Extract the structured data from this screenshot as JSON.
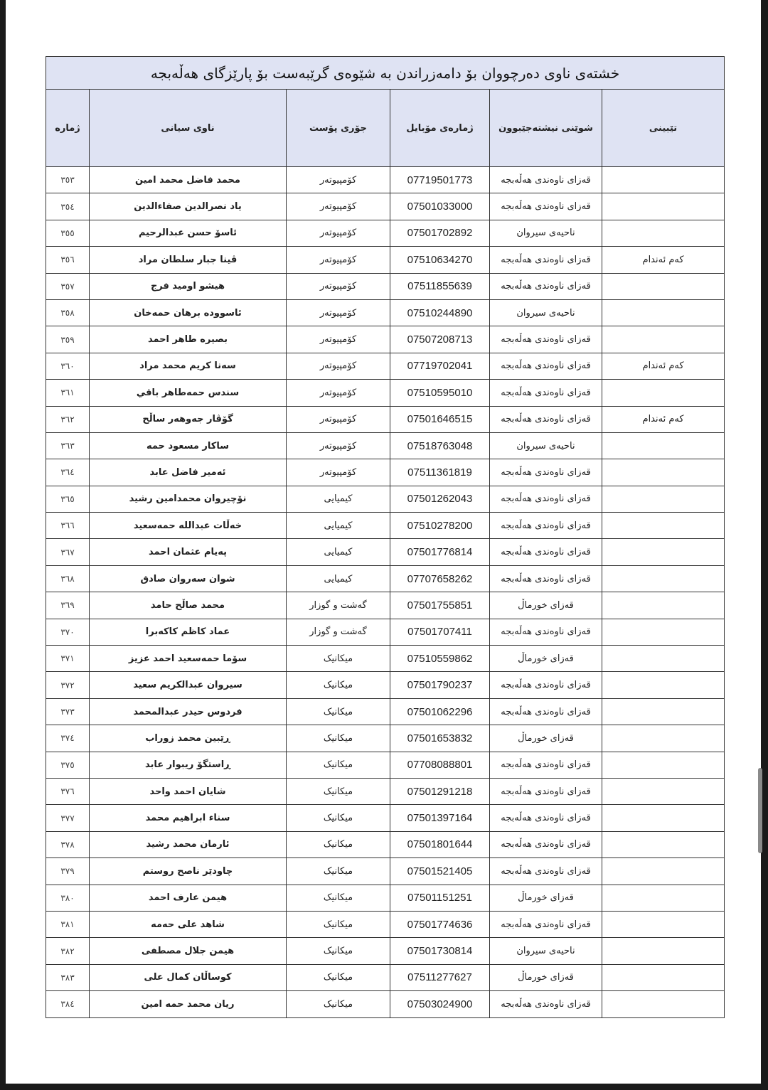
{
  "title": "خشتەی ناوی دەرچووان بۆ دامەزراندن بە شێوەی گرێبەست بۆ پارێزگای هەڵەبجە",
  "headers": {
    "number": "ژمارە",
    "name": "ناوی سیانی",
    "post_type": "جۆری پۆست",
    "mobile": "ژمارەی مۆبایل",
    "location": "شوێنی نیشتەجێبوون",
    "notes": "تێبینی"
  },
  "rows": [
    {
      "number": "٣٥٣",
      "name": "محمد فاضل محمد امين",
      "post_type": "کۆمپیوتەر",
      "mobile": "07719501773",
      "location": "قەزای ناوەندی هەڵەبجە",
      "notes": ""
    },
    {
      "number": "٣٥٤",
      "name": "ياد نصرالدين صفاءالدين",
      "post_type": "کۆمپیوتەر",
      "mobile": "07501033000",
      "location": "قەزای ناوەندی هەڵەبجە",
      "notes": ""
    },
    {
      "number": "٣٥٥",
      "name": "ئاسۆ حسن عبدالرحيم",
      "post_type": "کۆمپیوتەر",
      "mobile": "07501702892",
      "location": "ناحیەی سیروان",
      "notes": ""
    },
    {
      "number": "٣٥٦",
      "name": "ڤينا جبار سلطان مراد",
      "post_type": "کۆمپیوتەر",
      "mobile": "07510634270",
      "location": "قەزای ناوەندی هەڵەبجە",
      "notes": "کەم ئەندام"
    },
    {
      "number": "٣٥٧",
      "name": "هيشو اوميد فرج",
      "post_type": "کۆمپیوتەر",
      "mobile": "07511855639",
      "location": "قەزای ناوەندی هەڵەبجە",
      "notes": ""
    },
    {
      "number": "٣٥٨",
      "name": "ئاسوودە برهان حمەخان",
      "post_type": "کۆمپیوتەر",
      "mobile": "07510244890",
      "location": "ناحیەی سیروان",
      "notes": ""
    },
    {
      "number": "٣٥٩",
      "name": "بصيرە طاهر احمد",
      "post_type": "کۆمپیوتەر",
      "mobile": "07507208713",
      "location": "قەزای ناوەندی هەڵەبجە",
      "notes": ""
    },
    {
      "number": "٣٦٠",
      "name": "سەنا كريم محمد مراد",
      "post_type": "کۆمپیوتەر",
      "mobile": "07719702041",
      "location": "قەزای ناوەندی هەڵەبجە",
      "notes": "کەم ئەندام"
    },
    {
      "number": "٣٦١",
      "name": "سندس حمەطاهر باقي",
      "post_type": "کۆمپیوتەر",
      "mobile": "07510595010",
      "location": "قەزای ناوەندی هەڵەبجە",
      "notes": ""
    },
    {
      "number": "٣٦٢",
      "name": "گۆڤار جەوهەر ساڵح",
      "post_type": "کۆمپیوتەر",
      "mobile": "07501646515",
      "location": "قەزای ناوەندی هەڵەبجە",
      "notes": "کەم ئەندام"
    },
    {
      "number": "٣٦٣",
      "name": "ساكار مسعود حمە",
      "post_type": "کۆمپیوتەر",
      "mobile": "07518763048",
      "location": "ناحیەی سیروان",
      "notes": ""
    },
    {
      "number": "٣٦٤",
      "name": "ئەمير فاضل عابد",
      "post_type": "کۆمپیوتەر",
      "mobile": "07511361819",
      "location": "قەزای ناوەندی هەڵەبجە",
      "notes": ""
    },
    {
      "number": "٣٦٥",
      "name": "نۆچيروان محمدامين رشيد",
      "post_type": "کیمیایی",
      "mobile": "07501262043",
      "location": "قەزای ناوەندی هەڵەبجە",
      "notes": ""
    },
    {
      "number": "٣٦٦",
      "name": "خەڵات عبداللە حمەسعيد",
      "post_type": "کیمیایی",
      "mobile": "07510278200",
      "location": "قەزای ناوەندی هەڵەبجە",
      "notes": ""
    },
    {
      "number": "٣٦٧",
      "name": "پەيام عثمان احمد",
      "post_type": "کیمیایی",
      "mobile": "07501776814",
      "location": "قەزای ناوەندی هەڵەبجە",
      "notes": ""
    },
    {
      "number": "٣٦٨",
      "name": "شوان سەروان صادق",
      "post_type": "کیمیایی",
      "mobile": "07707658262",
      "location": "قەزای ناوەندی هەڵەبجە",
      "notes": ""
    },
    {
      "number": "٣٦٩",
      "name": "محمد صاڵح حامد",
      "post_type": "گەشت و گوزار",
      "mobile": "07501755851",
      "location": "قەزای خورماڵ",
      "notes": ""
    },
    {
      "number": "٣٧٠",
      "name": "عماد كاظم كاكەبرا",
      "post_type": "گەشت و گوزار",
      "mobile": "07501707411",
      "location": "قەزای ناوەندی هەڵەبجە",
      "notes": ""
    },
    {
      "number": "٣٧١",
      "name": "سۆما حمەسعيد احمد عزيز",
      "post_type": "میکانیک",
      "mobile": "07510559862",
      "location": "قەزای خورماڵ",
      "notes": ""
    },
    {
      "number": "٣٧٢",
      "name": "سيروان عبدالكريم سعيد",
      "post_type": "میکانیک",
      "mobile": "07501790237",
      "location": "قەزای ناوەندی هەڵەبجە",
      "notes": ""
    },
    {
      "number": "٣٧٣",
      "name": "فردوس حيدر عبدالمحمد",
      "post_type": "میکانیک",
      "mobile": "07501062296",
      "location": "قەزای ناوەندی هەڵەبجە",
      "notes": ""
    },
    {
      "number": "٣٧٤",
      "name": "ڕێبين محمد زوراب",
      "post_type": "میکانیک",
      "mobile": "07501653832",
      "location": "قەزای خورماڵ",
      "notes": ""
    },
    {
      "number": "٣٧٥",
      "name": "ڕاستگۆ ريبوار عابد",
      "post_type": "میکانیک",
      "mobile": "07708088801",
      "location": "قەزای ناوەندی هەڵەبجە",
      "notes": ""
    },
    {
      "number": "٣٧٦",
      "name": "شايان احمد واحد",
      "post_type": "میکانیک",
      "mobile": "07501291218",
      "location": "قەزای ناوەندی هەڵەبجە",
      "notes": ""
    },
    {
      "number": "٣٧٧",
      "name": "سناء ابراهيم محمد",
      "post_type": "میکانیک",
      "mobile": "07501397164",
      "location": "قەزای ناوەندی هەڵەبجە",
      "notes": ""
    },
    {
      "number": "٣٧٨",
      "name": "ئارمان محمد رشيد",
      "post_type": "میکانیک",
      "mobile": "07501801644",
      "location": "قەزای ناوەندی هەڵەبجە",
      "notes": ""
    },
    {
      "number": "٣٧٩",
      "name": "چاودێر ناصح روستم",
      "post_type": "میکانیک",
      "mobile": "07501521405",
      "location": "قەزای ناوەندی هەڵەبجە",
      "notes": ""
    },
    {
      "number": "٣٨٠",
      "name": "هيمن عارف احمد",
      "post_type": "میکانیک",
      "mobile": "07501151251",
      "location": "قەزای خورماڵ",
      "notes": ""
    },
    {
      "number": "٣٨١",
      "name": "شاهد على حەمە",
      "post_type": "میکانیک",
      "mobile": "07501774636",
      "location": "قەزای ناوەندی هەڵەبجە",
      "notes": ""
    },
    {
      "number": "٣٨٢",
      "name": "هيمن جلال مصطفى",
      "post_type": "میکانیک",
      "mobile": "07501730814",
      "location": "ناحیەی سیروان",
      "notes": ""
    },
    {
      "number": "٣٨٣",
      "name": "كوساڵان كمال على",
      "post_type": "میکانیک",
      "mobile": "07511277627",
      "location": "قەزای خورماڵ",
      "notes": ""
    },
    {
      "number": "٣٨٤",
      "name": "ريان محمد حمە امين",
      "post_type": "میکانیک",
      "mobile": "07503024900",
      "location": "قەزای ناوەندی هەڵەبجە",
      "notes": ""
    }
  ]
}
